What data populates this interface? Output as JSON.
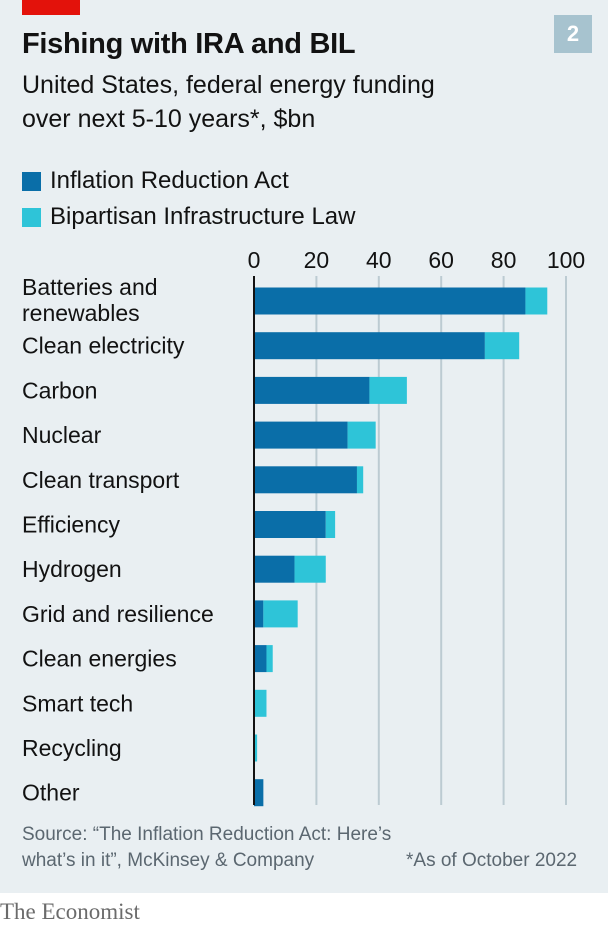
{
  "header": {
    "title": "Fishing with IRA and BIL",
    "chart_number": "2",
    "subtitle": "United States, federal energy funding over next 5-10 years*, $bn"
  },
  "legend": {
    "items": [
      {
        "label": "Inflation Reduction Act",
        "color": "#0a6ea8"
      },
      {
        "label": "Bipartisan Infrastructure Law",
        "color": "#2ec4d8"
      }
    ]
  },
  "chart_data": {
    "type": "bar",
    "orientation": "horizontal",
    "stacked": true,
    "categories": [
      "Batteries and renewables",
      "Clean electricity",
      "Carbon",
      "Nuclear",
      "Clean transport",
      "Efficiency",
      "Hydrogen",
      "Grid and resilience",
      "Clean energies",
      "Smart tech",
      "Recycling",
      "Other"
    ],
    "series": [
      {
        "name": "Inflation Reduction Act",
        "color": "#0a6ea8",
        "values": [
          87,
          74,
          37,
          30,
          33,
          23,
          13,
          3,
          4,
          0,
          0,
          3
        ]
      },
      {
        "name": "Bipartisan Infrastructure Law",
        "color": "#2ec4d8",
        "values": [
          7,
          11,
          12,
          9,
          2,
          3,
          10,
          11,
          2,
          4,
          1,
          0
        ]
      }
    ],
    "xticks": [
      0,
      20,
      40,
      60,
      80,
      100
    ],
    "xlim": [
      0,
      100
    ],
    "grid": true,
    "axis_position": "top"
  },
  "footer": {
    "source": "Source: “The Inflation Reduction Act: Here’s what’s in it”, McKinsey & Company",
    "footnote": "*As of October 2022"
  },
  "brand": "The Economist"
}
